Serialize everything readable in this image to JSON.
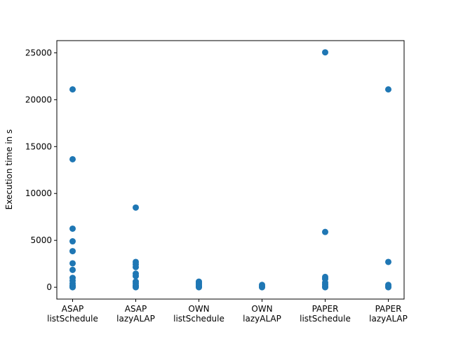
{
  "chart_data": {
    "type": "scatter",
    "ylabel": "Execution time in s",
    "categories": [
      [
        "ASAP",
        "listSchedule"
      ],
      [
        "ASAP",
        "lazyALAP"
      ],
      [
        "OWN",
        "listSchedule"
      ],
      [
        "OWN",
        "lazyALAP"
      ],
      [
        "PAPER",
        "listSchedule"
      ],
      [
        "PAPER",
        "lazyALAP"
      ]
    ],
    "values": [
      [
        21100,
        13650,
        6250,
        4900,
        3850,
        2550,
        1850,
        1000,
        700,
        400,
        200,
        100,
        50,
        0
      ],
      [
        8500,
        2700,
        2450,
        2150,
        1450,
        1200,
        600,
        400,
        200,
        100,
        0
      ],
      [
        600,
        450,
        300,
        150,
        50,
        0
      ],
      [
        250,
        100,
        0
      ],
      [
        25050,
        5900,
        1100,
        900,
        500,
        300,
        100,
        0
      ],
      [
        21100,
        2700,
        250,
        100,
        0
      ]
    ],
    "color": "#1f77b4",
    "ylim": [
      -1260,
      26300
    ],
    "yticks": [
      0,
      5000,
      10000,
      15000,
      20000,
      25000
    ],
    "grid": false
  }
}
